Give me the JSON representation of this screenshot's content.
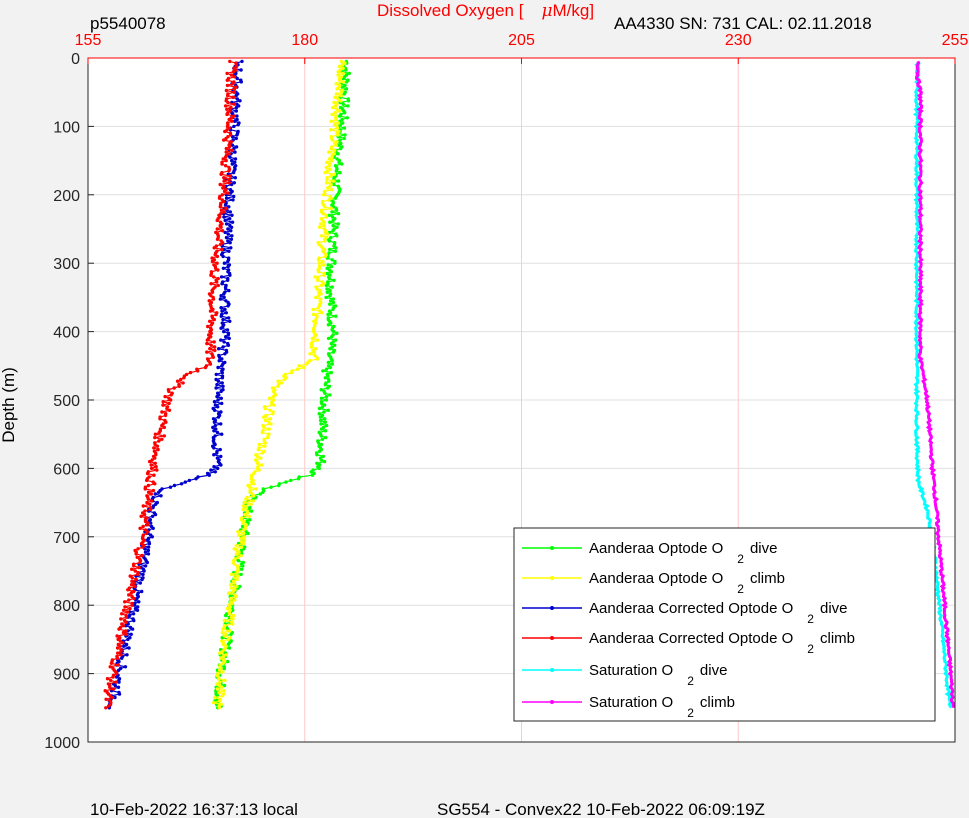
{
  "header": {
    "profile_id": "p5540078",
    "instrument": "AA4330   SN: 731   CAL: 02.11.2018",
    "title_pre": "Dissolved Oxygen [",
    "title_mu": "μ",
    "title_post": "M/kg]"
  },
  "footer": {
    "local_time": "10-Feb-2022 16:37:13 local",
    "mission": "SG554 - Convex22 10-Feb-2022 06:09:19Z"
  },
  "chart_data": {
    "type": "line",
    "title": "Dissolved Oxygen [μM/kg]",
    "xlabel": "Dissolved Oxygen [μM/kg]",
    "ylabel": "Depth (m)",
    "xlim": [
      155,
      255
    ],
    "ylim": [
      0,
      1000
    ],
    "y_reversed": true,
    "x_axis_position": "top",
    "x_ticks": [
      155,
      180,
      205,
      230,
      255
    ],
    "y_ticks": [
      0,
      100,
      200,
      300,
      400,
      500,
      600,
      700,
      800,
      900,
      1000
    ],
    "grid": true,
    "legend_position": "bottom-right",
    "colors": {
      "x_axis": "#ff0000",
      "green": "#00ff00",
      "yellow": "#ffff00",
      "blue": "#0000cc",
      "red": "#ff0000",
      "cyan": "#00ffff",
      "magenta": "#ff00ff"
    },
    "series": [
      {
        "name": "Aanderaa Optode O2 dive",
        "label_main": "Aanderaa Optode O",
        "label_sub": "2",
        "label_tail": "dive",
        "color": "#00ff00",
        "depth": [
          5,
          50,
          100,
          150,
          200,
          250,
          300,
          350,
          400,
          450,
          500,
          550,
          600,
          610,
          620,
          630,
          640,
          650,
          700,
          750,
          800,
          850,
          900,
          950
        ],
        "oxygen": [
          184.8,
          184.6,
          184.3,
          183.8,
          183.5,
          183.3,
          183.1,
          183.0,
          183.3,
          182.6,
          182.3,
          182.0,
          181.8,
          180.5,
          178.0,
          175.5,
          174.0,
          173.5,
          172.9,
          172.3,
          171.6,
          171.0,
          170.4,
          170.0
        ]
      },
      {
        "name": "Aanderaa Optode O2 climb",
        "label_main": "Aanderaa Optode O",
        "label_sub": "2",
        "label_tail": "climb",
        "color": "#ffff00",
        "depth": [
          5,
          50,
          100,
          150,
          200,
          250,
          300,
          350,
          400,
          440,
          460,
          470,
          480,
          500,
          550,
          600,
          650,
          700,
          750,
          800,
          850,
          900,
          950
        ],
        "oxygen": [
          184.2,
          184.0,
          183.5,
          183.0,
          182.7,
          182.2,
          181.9,
          181.5,
          181.4,
          181.0,
          178.5,
          177.5,
          176.5,
          176.0,
          175.5,
          174.5,
          173.5,
          172.6,
          172.0,
          171.5,
          170.9,
          170.4,
          169.9
        ]
      },
      {
        "name": "Aanderaa Corrected Optode O2 dive",
        "label_main": "Aanderaa Corrected Optode O",
        "label_sub": "2",
        "label_tail": "dive",
        "color": "#0000cc",
        "depth": [
          5,
          50,
          100,
          150,
          200,
          250,
          300,
          350,
          400,
          450,
          500,
          550,
          600,
          610,
          620,
          630,
          640,
          660,
          700,
          750,
          800,
          850,
          900,
          950
        ],
        "oxygen": [
          172.3,
          172.1,
          171.9,
          171.6,
          171.3,
          171.1,
          170.9,
          170.8,
          170.9,
          170.3,
          170.0,
          169.9,
          169.8,
          168.5,
          166.0,
          164.0,
          163.0,
          162.4,
          161.9,
          161.2,
          160.3,
          159.5,
          158.6,
          157.8
        ]
      },
      {
        "name": "Aanderaa Corrected Optode O2 climb",
        "label_main": "Aanderaa Corrected Optode O",
        "label_sub": "2",
        "label_tail": "climb",
        "color": "#ff0000",
        "depth": [
          5,
          50,
          100,
          150,
          200,
          250,
          300,
          350,
          400,
          450,
          460,
          470,
          480,
          500,
          550,
          600,
          650,
          700,
          750,
          800,
          850,
          900,
          950
        ],
        "oxygen": [
          171.6,
          171.5,
          171.3,
          171.0,
          170.7,
          170.2,
          169.7,
          169.4,
          169.2,
          169.0,
          167.0,
          166.0,
          165.0,
          164.2,
          163.3,
          162.5,
          161.8,
          161.3,
          160.5,
          159.6,
          158.8,
          157.9,
          157.1
        ]
      },
      {
        "name": "Saturation O2 dive",
        "label_main": "Saturation O",
        "label_sub": "2",
        "label_tail": "dive",
        "color": "#00ffff",
        "depth": [
          5,
          50,
          100,
          200,
          300,
          400,
          450,
          500,
          550,
          600,
          620,
          640,
          660,
          700,
          800,
          900,
          950
        ],
        "oxygen": [
          250.7,
          250.6,
          250.6,
          250.6,
          250.6,
          250.6,
          250.6,
          250.6,
          250.6,
          250.7,
          250.8,
          251.3,
          251.8,
          252.4,
          253.2,
          254.0,
          254.4
        ]
      },
      {
        "name": "Saturation O2 climb",
        "label_main": "Saturation O",
        "label_sub": "2",
        "label_tail": "climb",
        "color": "#ff00ff",
        "depth": [
          5,
          30,
          50,
          100,
          200,
          300,
          400,
          440,
          460,
          500,
          550,
          600,
          650,
          700,
          800,
          900,
          950
        ],
        "oxygen": [
          250.8,
          250.7,
          251.0,
          251.0,
          251.0,
          251.0,
          251.0,
          251.0,
          251.3,
          251.8,
          252.1,
          252.4,
          252.8,
          253.1,
          253.8,
          254.5,
          254.8
        ]
      }
    ]
  }
}
